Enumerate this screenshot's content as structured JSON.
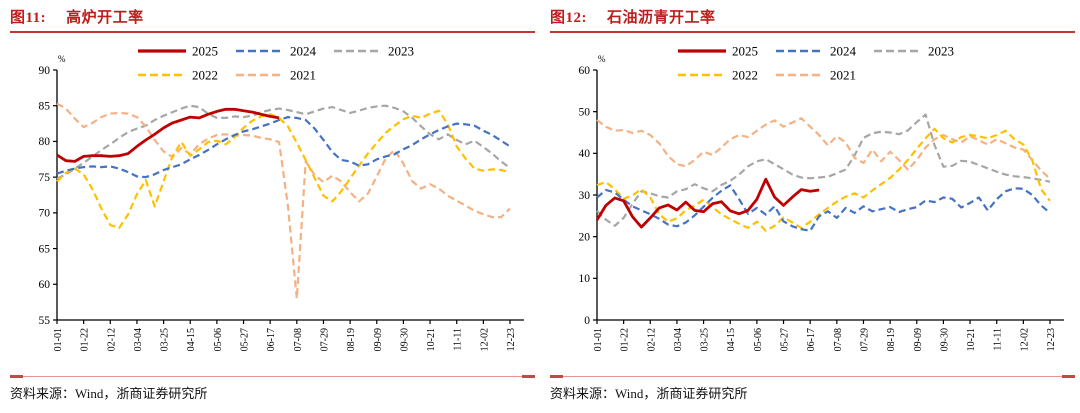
{
  "page": {
    "background": "#ffffff"
  },
  "colors": {
    "title_red": "#bf1d1d",
    "title_rule": "#c23531",
    "footer_rule_line": "#e59393",
    "footer_rule_cap": "#be4b48",
    "axis": "#000000",
    "y2025": "#c00000",
    "y2024": "#4472c4",
    "y2023": "#a6a6a6",
    "y2022": "#ffc000",
    "y2021": "#f4b183"
  },
  "panels": [
    {
      "fig_label": "图11:",
      "title": "高炉开工率",
      "source": "资料来源：Wind，浙商证券研究所"
    },
    {
      "fig_label": "图12:",
      "title": "石油沥青开工率",
      "source": "资料来源：Wind，浙商证券研究所"
    }
  ],
  "chart_data": [
    {
      "type": "line",
      "title": "高炉开工率",
      "unit": "%",
      "xlabel": "",
      "ylabel": "%",
      "grid": false,
      "legend_position": "top",
      "ylim": [
        55,
        90
      ],
      "y_ticks": [
        90,
        85,
        80,
        75,
        70,
        65,
        60,
        55
      ],
      "x_tick_labels": [
        "01-01",
        "01-22",
        "02-12",
        "03-04",
        "03-25",
        "04-15",
        "05-06",
        "05-27",
        "06-17",
        "07-08",
        "07-29",
        "08-19",
        "09-09",
        "09-30",
        "10-21",
        "11-11",
        "12-02",
        "12-23"
      ],
      "weeks_per_year": 52,
      "series": [
        {
          "name": "2025",
          "color": "#c00000",
          "dash": "solid",
          "values": [
            78.1,
            77.3,
            77.2,
            77.9,
            78.0,
            78.0,
            77.9,
            78.0,
            78.3,
            79.3,
            80.2,
            81.0,
            81.9,
            82.6,
            83.0,
            83.4,
            83.3,
            83.8,
            84.2,
            84.5,
            84.5,
            84.3,
            84.1,
            83.8,
            83.5,
            83.3
          ]
        },
        {
          "name": "2024",
          "color": "#4472c4",
          "dash": "dashed",
          "values": [
            75.5,
            75.9,
            76.2,
            76.4,
            76.5,
            76.4,
            76.5,
            76.2,
            75.7,
            75.1,
            75.0,
            75.4,
            76.0,
            76.4,
            76.8,
            77.5,
            78.1,
            78.8,
            79.6,
            80.3,
            80.9,
            81.4,
            81.7,
            82.1,
            82.5,
            83.0,
            83.4,
            83.3,
            83.0,
            81.8,
            80.2,
            78.5,
            77.4,
            77.2,
            76.6,
            76.8,
            77.5,
            77.9,
            78.2,
            78.9,
            79.5,
            80.3,
            81.0,
            81.6,
            82.1,
            82.5,
            82.4,
            82.2,
            81.5,
            80.9,
            80.1,
            79.3
          ]
        },
        {
          "name": "2023",
          "color": "#a6a6a6",
          "dash": "dashed",
          "values": [
            74.8,
            75.4,
            76.2,
            77.0,
            77.9,
            78.8,
            79.6,
            80.5,
            81.3,
            81.8,
            82.2,
            83.0,
            83.6,
            84.1,
            84.6,
            85.0,
            84.8,
            83.9,
            83.3,
            83.3,
            83.5,
            83.4,
            83.6,
            84.1,
            84.4,
            84.6,
            84.4,
            84.1,
            83.8,
            84.2,
            84.6,
            84.8,
            84.4,
            84.0,
            84.3,
            84.7,
            84.9,
            85.0,
            84.7,
            84.2,
            83.3,
            82.1,
            81.0,
            80.3,
            81.0,
            80.2,
            79.6,
            80.1,
            79.2,
            78.3,
            77.2,
            76.3
          ]
        },
        {
          "name": "2022",
          "color": "#ffc000",
          "dash": "dashed",
          "values": [
            74.4,
            75.6,
            76.2,
            75.4,
            73.3,
            70.6,
            68.3,
            67.9,
            69.8,
            72.6,
            74.6,
            70.9,
            74.4,
            77.9,
            79.9,
            78.0,
            78.9,
            79.9,
            80.1,
            79.6,
            80.6,
            81.9,
            82.9,
            83.5,
            83.8,
            83.3,
            82.1,
            79.8,
            77.4,
            74.9,
            72.4,
            71.6,
            73.0,
            74.8,
            76.6,
            78.3,
            79.8,
            81.2,
            82.2,
            83.1,
            83.6,
            83.3,
            83.9,
            84.3,
            82.4,
            79.3,
            77.6,
            76.2,
            75.9,
            76.1,
            76.0,
            75.7
          ]
        },
        {
          "name": "2021",
          "color": "#f4b183",
          "dash": "dashed",
          "values": [
            85.3,
            84.6,
            83.2,
            82.0,
            82.6,
            83.4,
            83.9,
            84.0,
            83.9,
            83.4,
            82.1,
            80.2,
            78.6,
            77.8,
            79.1,
            78.2,
            79.6,
            80.4,
            80.9,
            81.0,
            80.8,
            80.9,
            80.8,
            80.5,
            80.3,
            79.9,
            71.0,
            58.0,
            77.2,
            75.3,
            74.3,
            75.2,
            74.4,
            72.9,
            71.6,
            72.7,
            75.1,
            77.6,
            78.8,
            76.9,
            74.4,
            73.4,
            74.0,
            73.4,
            72.4,
            71.7,
            71.0,
            70.3,
            69.8,
            69.4,
            69.4,
            70.6
          ]
        }
      ]
    },
    {
      "type": "line",
      "title": "石油沥青开工率",
      "unit": "%",
      "xlabel": "",
      "ylabel": "%",
      "grid": false,
      "legend_position": "top",
      "ylim": [
        0,
        60
      ],
      "y_ticks": [
        60,
        50,
        40,
        30,
        20,
        10,
        0
      ],
      "x_tick_labels": [
        "01-01",
        "01-22",
        "02-12",
        "03-04",
        "03-25",
        "04-15",
        "05-06",
        "05-27",
        "06-17",
        "07-08",
        "07-29",
        "08-19",
        "09-09",
        "09-30",
        "10-21",
        "11-11",
        "12-02",
        "12-23"
      ],
      "weeks_per_year": 52,
      "series": [
        {
          "name": "2025",
          "color": "#c00000",
          "dash": "solid",
          "values": [
            24.0,
            27.5,
            29.3,
            28.6,
            24.8,
            22.3,
            24.5,
            26.9,
            27.6,
            26.4,
            28.3,
            26.3,
            26.0,
            27.9,
            28.4,
            26.2,
            25.5,
            26.3,
            29.0,
            33.8,
            29.5,
            27.5,
            29.5,
            31.3,
            30.9,
            31.2
          ]
        },
        {
          "name": "2024",
          "color": "#4472c4",
          "dash": "dashed",
          "values": [
            29.4,
            31.2,
            30.6,
            28.9,
            27.3,
            26.3,
            25.4,
            24.3,
            22.9,
            22.5,
            23.4,
            25.1,
            27.2,
            29.3,
            31.0,
            32.3,
            29.0,
            25.5,
            26.9,
            25.3,
            27.3,
            23.7,
            22.5,
            21.8,
            21.4,
            24.9,
            26.1,
            24.5,
            26.9,
            25.7,
            27.3,
            26.1,
            26.6,
            27.1,
            25.9,
            26.6,
            27.1,
            28.7,
            28.3,
            29.4,
            29.1,
            27.0,
            28.1,
            29.4,
            26.3,
            29.0,
            30.9,
            31.6,
            31.5,
            30.0,
            27.5,
            25.7
          ]
        },
        {
          "name": "2023",
          "color": "#a6a6a6",
          "dash": "dashed",
          "values": [
            26.2,
            24.1,
            22.6,
            24.5,
            27.9,
            30.9,
            30.4,
            29.7,
            29.4,
            30.9,
            31.4,
            32.6,
            31.6,
            30.9,
            32.4,
            33.4,
            34.9,
            36.9,
            38.1,
            38.6,
            37.4,
            36.2,
            34.9,
            34.2,
            34.0,
            34.2,
            34.4,
            35.2,
            36.1,
            39.5,
            43.7,
            44.8,
            45.2,
            45.0,
            44.6,
            45.5,
            47.5,
            49.3,
            42.0,
            36.8,
            37.0,
            38.2,
            38.0,
            37.2,
            36.4,
            35.6,
            34.9,
            34.5,
            34.3,
            34.0,
            33.6,
            33.2
          ]
        },
        {
          "name": "2022",
          "color": "#ffc000",
          "dash": "dashed",
          "values": [
            32.4,
            33.1,
            31.4,
            29.1,
            29.9,
            31.4,
            29.4,
            25.4,
            23.6,
            24.4,
            26.4,
            27.4,
            28.9,
            27.1,
            25.4,
            24.2,
            23.1,
            22.1,
            23.6,
            21.4,
            22.6,
            24.6,
            23.4,
            22.1,
            23.6,
            25.4,
            26.9,
            28.4,
            29.6,
            30.4,
            29.4,
            31.1,
            32.6,
            34.1,
            36.1,
            38.4,
            41.1,
            43.6,
            45.9,
            43.6,
            42.6,
            43.9,
            44.4,
            44.1,
            43.6,
            44.4,
            45.4,
            43.4,
            42.1,
            38.4,
            31.4,
            28.6
          ]
        },
        {
          "name": "2021",
          "color": "#f4b183",
          "dash": "dashed",
          "values": [
            48.0,
            46.4,
            45.4,
            45.6,
            44.9,
            45.4,
            44.4,
            42.4,
            39.4,
            37.4,
            36.9,
            38.4,
            40.4,
            39.6,
            41.4,
            43.4,
            44.4,
            43.9,
            45.4,
            46.9,
            47.9,
            46.4,
            47.4,
            48.4,
            46.4,
            44.4,
            41.9,
            44.1,
            42.6,
            38.9,
            37.7,
            40.9,
            38.1,
            40.4,
            38.4,
            36.1,
            38.4,
            41.4,
            43.4,
            44.4,
            43.4,
            42.6,
            44.1,
            43.1,
            42.1,
            43.4,
            42.4,
            41.4,
            40.9,
            38.4,
            35.9,
            33.9
          ]
        }
      ]
    }
  ]
}
